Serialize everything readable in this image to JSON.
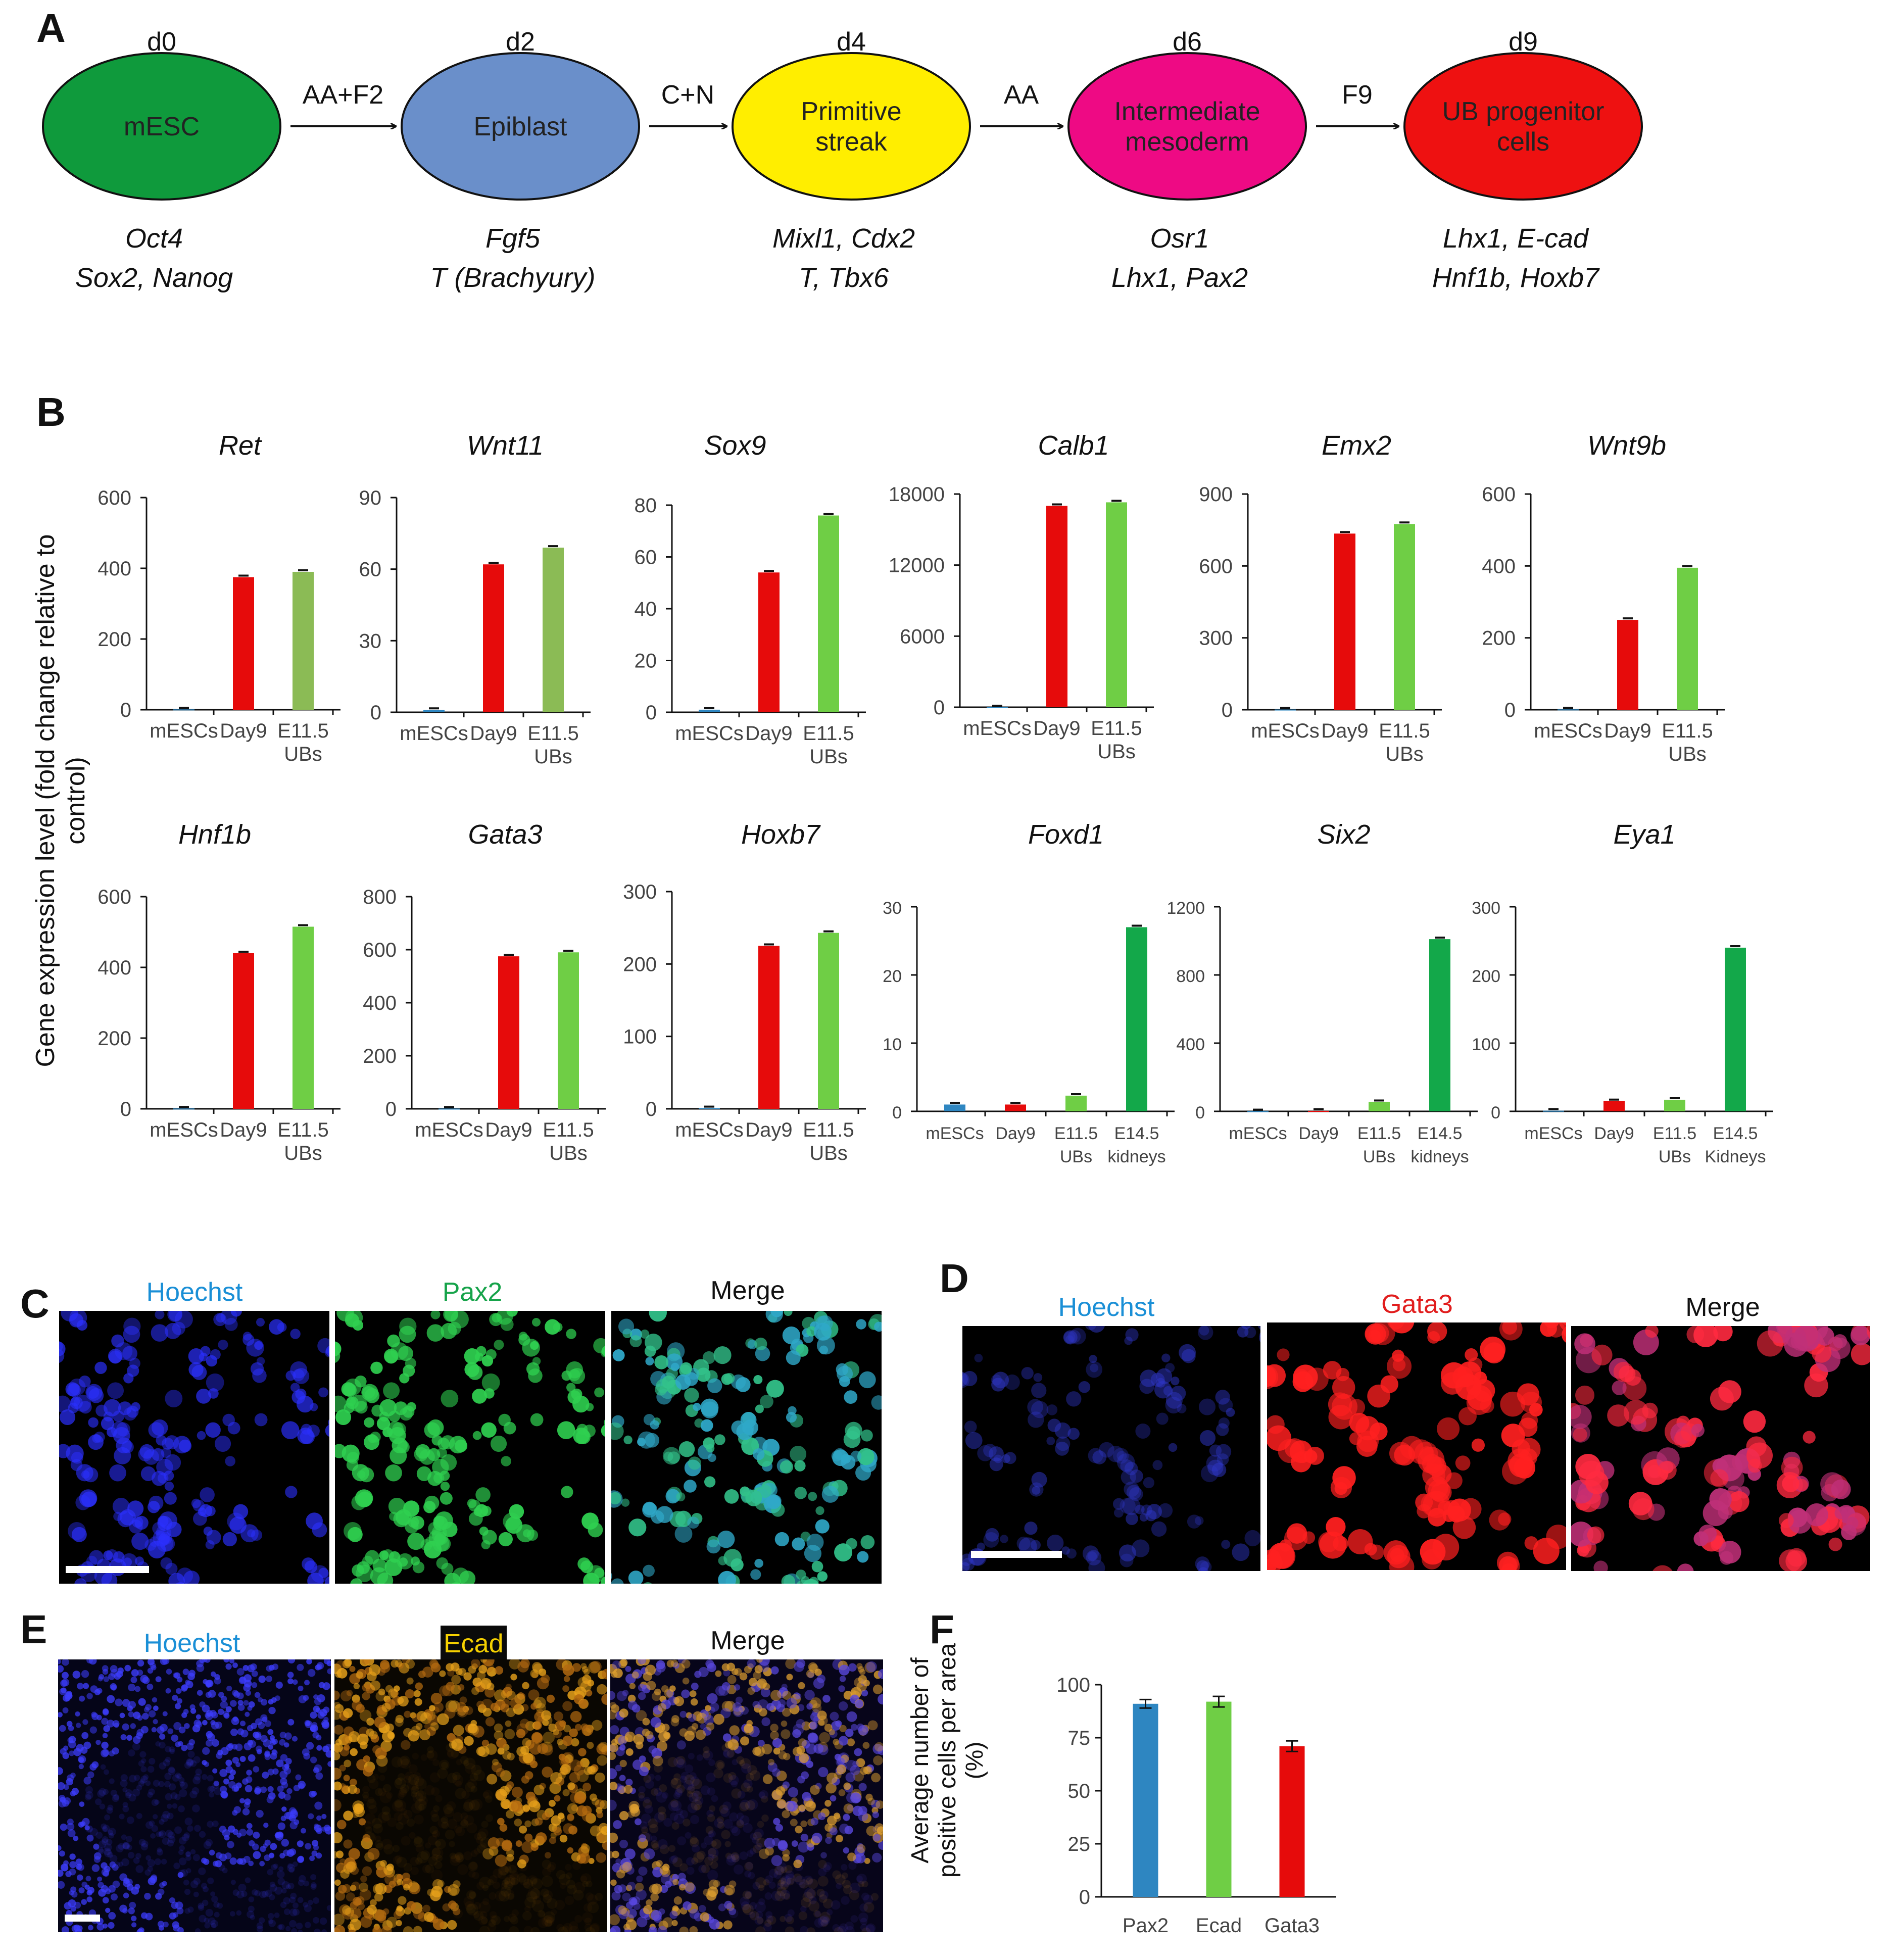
{
  "panels": {
    "A": "A",
    "B": "B",
    "C": "C",
    "D": "D",
    "E": "E",
    "F": "F"
  },
  "pathway": {
    "stages": [
      {
        "day": "d0",
        "name": [
          "mESC"
        ],
        "color": "#0f9a3c",
        "markers": [
          "Oct4",
          "Sox2, Nanog"
        ]
      },
      {
        "day": "d2",
        "name": [
          "Epiblast"
        ],
        "color": "#6a8fca",
        "markers": [
          "Fgf5",
          "T (Brachyury)"
        ]
      },
      {
        "day": "d4",
        "name": [
          "Primitive",
          "streak"
        ],
        "color": "#ffee00",
        "markers": [
          "Mixl1, Cdx2",
          "T, Tbx6"
        ]
      },
      {
        "day": "d6",
        "name": [
          "Intermediate",
          "mesoderm"
        ],
        "color": "#ee0a84",
        "markers": [
          "Osr1",
          "Lhx1, Pax2"
        ]
      },
      {
        "day": "d9",
        "name": [
          "UB progenitor",
          "cells"
        ],
        "color": "#ee1111",
        "markers": [
          "Lhx1, E-cad",
          "Hnf1b, Hoxb7"
        ]
      }
    ],
    "arrows": [
      "AA+F2",
      "C+N",
      "AA",
      "F9"
    ]
  },
  "panelB": {
    "ylabel": "Gene expression level (fold change relative to control)",
    "colors": {
      "mESCs": "#2e86c1",
      "Day9": "#e60b0b",
      "E11.5": "#6fce45",
      "E11.5_olive": "#8bbb55",
      "E14.5": "#13a84a"
    }
  },
  "chart_data": [
    {
      "type": "bar",
      "title": "Ret",
      "categories": [
        "mESCs",
        "Day9",
        "E11.5 UBs"
      ],
      "values": [
        1,
        375,
        390
      ],
      "ylim": [
        0,
        600
      ],
      "yticks": [
        "0",
        "200",
        "400",
        "600"
      ]
    },
    {
      "type": "bar",
      "title": "Wnt11",
      "categories": [
        "mESCs",
        "Day9",
        "E11.5 UBs"
      ],
      "values": [
        1,
        62,
        69
      ],
      "ylim": [
        0,
        90
      ],
      "yticks": [
        "0",
        "30",
        "60",
        "90"
      ]
    },
    {
      "type": "bar",
      "title": "Sox9",
      "categories": [
        "mESCs",
        "Day9",
        "E11.5 UBs"
      ],
      "values": [
        1,
        54,
        76
      ],
      "ylim": [
        0,
        80
      ],
      "yticks": [
        "0",
        "20",
        "40",
        "60",
        "80"
      ]
    },
    {
      "type": "bar",
      "title": "Calb1",
      "categories": [
        "mESCs",
        "Day9",
        "E11.5 UBs"
      ],
      "values": [
        1,
        17000,
        17300
      ],
      "ylim": [
        0,
        18000
      ],
      "yticks": [
        "0",
        "6000",
        "12000",
        "18000"
      ]
    },
    {
      "type": "bar",
      "title": "Emx2",
      "categories": [
        "mESCs",
        "Day9",
        "E11.5 UBs"
      ],
      "values": [
        1,
        735,
        775
      ],
      "ylim": [
        0,
        900
      ],
      "yticks": [
        "0",
        "300",
        "600",
        "900"
      ]
    },
    {
      "type": "bar",
      "title": "Wnt9b",
      "categories": [
        "mESCs",
        "Day9",
        "E11.5 UBs"
      ],
      "values": [
        1,
        250,
        395
      ],
      "ylim": [
        0,
        600
      ],
      "yticks": [
        "0",
        "200",
        "400",
        "600"
      ]
    },
    {
      "type": "bar",
      "title": "Hnf1b",
      "categories": [
        "mESCs",
        "Day9",
        "E11.5 UBs"
      ],
      "values": [
        1,
        440,
        515
      ],
      "ylim": [
        0,
        600
      ],
      "yticks": [
        "0",
        "200",
        "400",
        "600"
      ]
    },
    {
      "type": "bar",
      "title": "Gata3",
      "categories": [
        "mESCs",
        "Day9",
        "E11.5 UBs"
      ],
      "values": [
        1,
        575,
        590
      ],
      "ylim": [
        0,
        800
      ],
      "yticks": [
        "0",
        "200",
        "400",
        "600",
        "800"
      ]
    },
    {
      "type": "bar",
      "title": "Hoxb7",
      "categories": [
        "mESCs",
        "Day9",
        "E11.5 UBs"
      ],
      "values": [
        1,
        225,
        243
      ],
      "ylim": [
        0,
        300
      ],
      "yticks": [
        "0",
        "100",
        "200",
        "300"
      ]
    },
    {
      "type": "bar",
      "title": "Foxd1",
      "categories": [
        "mESCs",
        "Day9",
        "E11.5 UBs",
        "E14.5 kidneys"
      ],
      "values": [
        1,
        1,
        2.3,
        27
      ],
      "ylim": [
        0,
        30
      ],
      "yticks": [
        "0",
        "10",
        "20",
        "30"
      ]
    },
    {
      "type": "bar",
      "title": "Six2",
      "categories": [
        "mESCs",
        "Day9",
        "E11.5 UBs",
        "E14.5 kidneys"
      ],
      "values": [
        1,
        3,
        55,
        1010
      ],
      "ylim": [
        0,
        1200
      ],
      "yticks": [
        "0",
        "400",
        "800",
        "1200"
      ]
    },
    {
      "type": "bar",
      "title": "Eya1",
      "categories": [
        "mESCs",
        "Day9",
        "E11.5 UBs",
        "E14.5 Kidneys"
      ],
      "values": [
        1,
        15,
        17,
        240
      ],
      "ylim": [
        0,
        300
      ],
      "yticks": [
        "0",
        "100",
        "200",
        "300"
      ]
    },
    {
      "type": "bar",
      "title": "",
      "categories": [
        "Pax2",
        "Ecad",
        "Gata3"
      ],
      "values": [
        91,
        92,
        71
      ],
      "errors": [
        2,
        2.5,
        2.5
      ],
      "ylim": [
        0,
        100
      ],
      "yticks": [
        "0",
        "25",
        "50",
        "75",
        "100"
      ],
      "ylabel": "Average number of positive cells per area (%)"
    }
  ],
  "imaging": {
    "C": {
      "labels": [
        "Hoechst",
        "Pax2",
        "Merge"
      ],
      "colors": [
        "#1a8fd6",
        "#16a34a",
        "#111111"
      ]
    },
    "D": {
      "labels": [
        "Hoechst",
        "Gata3",
        "Merge"
      ],
      "colors": [
        "#1a8fd6",
        "#e11d1d",
        "#111111"
      ]
    },
    "E": {
      "labels": [
        "Hoechst",
        "Ecad",
        "Merge"
      ],
      "colors": [
        "#1a8fd6",
        "#f5d000",
        "#111111"
      ]
    }
  }
}
